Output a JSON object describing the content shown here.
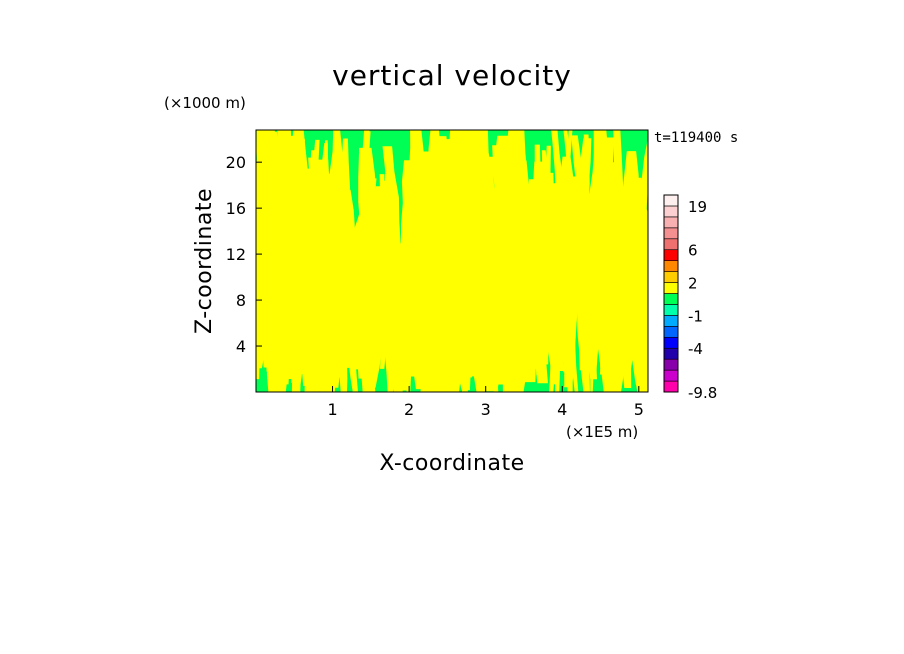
{
  "chart_data": {
    "type": "heatmap",
    "title": "vertical velocity",
    "xlabel": "X-coordinate",
    "ylabel": "Z-coordinate",
    "x_unit": "(×1E5 m)",
    "y_unit": "(×1000 m)",
    "time_label": "t=119400 s",
    "x_ticks": [
      "1",
      "2",
      "3",
      "4",
      "5"
    ],
    "x_tick_values": [
      1,
      2,
      3,
      4,
      5
    ],
    "y_ticks": [
      "4",
      "8",
      "12",
      "16",
      "20"
    ],
    "y_tick_values": [
      4,
      8,
      12,
      16,
      20
    ],
    "xlim": [
      0,
      5.12
    ],
    "ylim": [
      0,
      22.8
    ],
    "field_description_colors": {
      "positive_band": "#ffff00",
      "negative_band": "#00ff55"
    },
    "colorbar": {
      "labels": [
        "19",
        "6",
        "2",
        "-1",
        "-4",
        "-9.8"
      ],
      "label_values": [
        19,
        6,
        2,
        -1,
        -4,
        -9.8
      ],
      "levels": [
        -9.8,
        -8,
        -6,
        -5,
        -4,
        -3,
        -2,
        -1,
        0,
        1,
        2,
        3,
        4,
        6,
        8,
        11,
        15,
        19,
        22
      ],
      "colors": [
        "#ff00aa",
        "#cc00cc",
        "#8800aa",
        "#2200aa",
        "#0000ff",
        "#0066ff",
        "#00aaff",
        "#00ffaa",
        "#00ff55",
        "#ffff00",
        "#ffcc00",
        "#ff8800",
        "#ff0000",
        "#f07070",
        "#f49090",
        "#f8b0b0",
        "#fcd0d0",
        "#fff0f0"
      ]
    }
  }
}
